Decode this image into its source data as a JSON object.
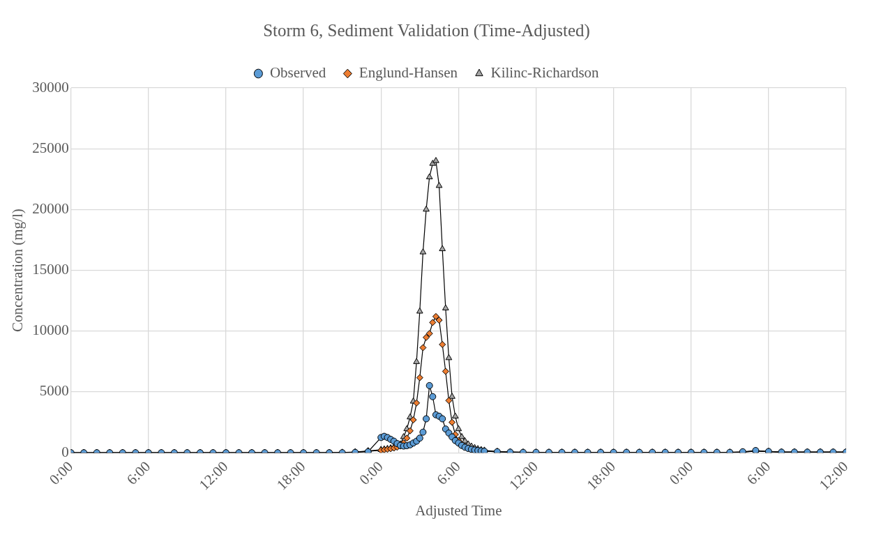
{
  "chart_data": {
    "type": "line",
    "title": "Storm 6, Sediment Validation (Time-Adjusted)",
    "xlabel": "Adjusted Time",
    "ylabel": "Concentration (mg/l)",
    "x": [
      "2000-01-01T00:00",
      "2000-01-01T01:00",
      "2000-01-01T02:00",
      "2000-01-01T03:00",
      "2000-01-01T04:00",
      "2000-01-01T05:00",
      "2000-01-01T06:00",
      "2000-01-01T07:00",
      "2000-01-01T08:00",
      "2000-01-01T09:00",
      "2000-01-01T10:00",
      "2000-01-01T11:00",
      "2000-01-01T12:00",
      "2000-01-01T13:00",
      "2000-01-01T14:00",
      "2000-01-01T15:00",
      "2000-01-01T16:00",
      "2000-01-01T17:00",
      "2000-01-01T18:00",
      "2000-01-01T19:00",
      "2000-01-01T20:00",
      "2000-01-01T21:00",
      "2000-01-01T22:00",
      "2000-01-01T23:00",
      "2000-01-02T00:00",
      "2000-01-02T00:15",
      "2000-01-02T00:30",
      "2000-01-02T00:45",
      "2000-01-02T01:00",
      "2000-01-02T01:15",
      "2000-01-02T01:30",
      "2000-01-02T01:45",
      "2000-01-02T02:00",
      "2000-01-02T02:15",
      "2000-01-02T02:30",
      "2000-01-02T02:45",
      "2000-01-02T03:00",
      "2000-01-02T03:15",
      "2000-01-02T03:30",
      "2000-01-02T03:45",
      "2000-01-02T04:00",
      "2000-01-02T04:15",
      "2000-01-02T04:30",
      "2000-01-02T04:45",
      "2000-01-02T05:00",
      "2000-01-02T05:15",
      "2000-01-02T05:30",
      "2000-01-02T05:45",
      "2000-01-02T06:00",
      "2000-01-02T06:15",
      "2000-01-02T06:30",
      "2000-01-02T06:45",
      "2000-01-02T07:00",
      "2000-01-02T07:15",
      "2000-01-02T07:30",
      "2000-01-02T07:45",
      "2000-01-02T08:00",
      "2000-01-02T09:00",
      "2000-01-02T10:00",
      "2000-01-02T11:00",
      "2000-01-02T12:00",
      "2000-01-02T13:00",
      "2000-01-02T14:00",
      "2000-01-02T15:00",
      "2000-01-02T16:00",
      "2000-01-02T17:00",
      "2000-01-02T18:00",
      "2000-01-02T19:00",
      "2000-01-02T20:00",
      "2000-01-02T21:00",
      "2000-01-02T22:00",
      "2000-01-02T23:00",
      "2000-01-03T00:00",
      "2000-01-03T01:00",
      "2000-01-03T02:00",
      "2000-01-03T03:00",
      "2000-01-03T04:00",
      "2000-01-03T05:00",
      "2000-01-03T06:00",
      "2000-01-03T07:00",
      "2000-01-03T08:00",
      "2000-01-03T09:00",
      "2000-01-03T10:00",
      "2000-01-03T11:00",
      "2000-01-03T12:00"
    ],
    "series": [
      {
        "name": "Observed",
        "color": "#5b9bd5",
        "marker": "circle",
        "values": [
          0,
          0,
          0,
          0,
          0,
          0,
          0,
          0,
          0,
          0,
          0,
          0,
          0,
          0,
          0,
          0,
          0,
          0,
          0,
          0,
          0,
          0,
          30,
          80,
          1250,
          1350,
          1250,
          1100,
          950,
          750,
          600,
          550,
          580,
          650,
          800,
          950,
          1200,
          1690,
          2790,
          5520,
          4610,
          3120,
          3000,
          2790,
          1950,
          1620,
          1300,
          1000,
          800,
          600,
          450,
          350,
          280,
          220,
          180,
          150,
          120,
          80,
          50,
          30,
          30,
          30,
          30,
          30,
          30,
          30,
          30,
          30,
          30,
          30,
          30,
          30,
          30,
          30,
          30,
          30,
          80,
          180,
          100,
          50,
          50,
          50,
          50,
          50,
          50
        ]
      },
      {
        "name": "Englund-Hansen",
        "color": "#ed7d31",
        "marker": "diamond",
        "values": [
          0,
          0,
          0,
          0,
          0,
          0,
          0,
          0,
          0,
          0,
          0,
          0,
          0,
          0,
          0,
          0,
          0,
          0,
          0,
          0,
          0,
          20,
          50,
          120,
          200,
          240,
          280,
          330,
          380,
          450,
          550,
          800,
          1200,
          1800,
          2700,
          4090,
          6170,
          8640,
          9480,
          9800,
          10710,
          11200,
          10900,
          8900,
          6690,
          4290,
          2500,
          1500,
          1000,
          700,
          520,
          400,
          310,
          250,
          200,
          160,
          130,
          70,
          40,
          30,
          20,
          20,
          20,
          20,
          20,
          20,
          20,
          20,
          20,
          20,
          20,
          20,
          20,
          20,
          20,
          20,
          50,
          130,
          80,
          50,
          50,
          50,
          50,
          50,
          50
        ]
      },
      {
        "name": "Kilinc-Richardson",
        "color": "#a5a5a5",
        "marker": "triangle",
        "values": [
          0,
          0,
          0,
          0,
          0,
          0,
          0,
          0,
          0,
          0,
          0,
          0,
          0,
          0,
          0,
          0,
          0,
          0,
          0,
          0,
          0,
          20,
          60,
          150,
          250,
          290,
          330,
          380,
          440,
          520,
          700,
          1300,
          1950,
          2920,
          4220,
          7470,
          11620,
          16490,
          20000,
          22660,
          23770,
          24000,
          21950,
          16750,
          11880,
          7790,
          4610,
          2990,
          1950,
          1300,
          950,
          700,
          520,
          400,
          310,
          240,
          190,
          100,
          60,
          40,
          30,
          30,
          30,
          30,
          30,
          30,
          30,
          30,
          30,
          30,
          30,
          30,
          30,
          30,
          30,
          30,
          60,
          150,
          100,
          60,
          60,
          60,
          60,
          60,
          60
        ]
      }
    ],
    "xlim": [
      "2000-01-01T00:00",
      "2000-01-03T12:00"
    ],
    "xticks": [
      {
        "value": "2000-01-01T00:00",
        "label": "0:00"
      },
      {
        "value": "2000-01-01T06:00",
        "label": "6:00"
      },
      {
        "value": "2000-01-01T12:00",
        "label": "12:00"
      },
      {
        "value": "2000-01-01T18:00",
        "label": "18:00"
      },
      {
        "value": "2000-01-02T00:00",
        "label": "0:00"
      },
      {
        "value": "2000-01-02T06:00",
        "label": "6:00"
      },
      {
        "value": "2000-01-02T12:00",
        "label": "12:00"
      },
      {
        "value": "2000-01-02T18:00",
        "label": "18:00"
      },
      {
        "value": "2000-01-03T00:00",
        "label": "0:00"
      },
      {
        "value": "2000-01-03T06:00",
        "label": "6:00"
      },
      {
        "value": "2000-01-03T12:00",
        "label": "12:00"
      }
    ],
    "ylim": [
      0,
      30000
    ],
    "yticks": [
      0,
      5000,
      10000,
      15000,
      20000,
      25000,
      30000
    ],
    "grid": true,
    "legend": "top",
    "line_style": "solid"
  }
}
